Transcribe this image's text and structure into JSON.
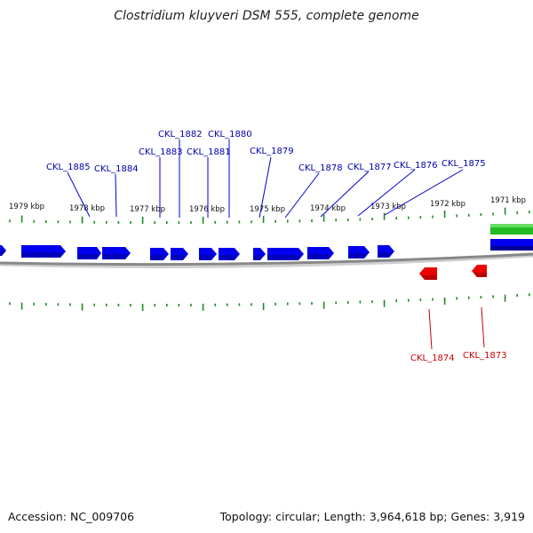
{
  "title": "Clostridium kluyveri DSM 555, complete genome",
  "footer": {
    "accession": "Accession: NC_009706",
    "topology": "Topology: circular; Length: 3,964,618 bp; Genes: 3,919"
  },
  "colors": {
    "forward_gene": "#0000ee",
    "reverse_gene": "#ee0000",
    "other_feature": "#22bb22",
    "tick": "#228822",
    "backbone": "#888888",
    "forward_label": "#0000aa",
    "reverse_label": "#cc0000"
  },
  "scale": {
    "unit": "kbp",
    "labels": [
      "1979 kbp",
      "1978 kbp",
      "1977 kbp",
      "1976 kbp",
      "1975 kbp",
      "1974 kbp",
      "1973 kbp",
      "1972 kbp",
      "1971 kbp"
    ]
  },
  "forward_genes": [
    {
      "label": "CKL_1885"
    },
    {
      "label": "CKL_1884"
    },
    {
      "label": "CKL_1883"
    },
    {
      "label": "CKL_1882"
    },
    {
      "label": "CKL_1881"
    },
    {
      "label": "CKL_1880"
    },
    {
      "label": "CKL_1879"
    },
    {
      "label": "CKL_1878"
    },
    {
      "label": "CKL_1877"
    },
    {
      "label": "CKL_1876"
    },
    {
      "label": "CKL_1875"
    }
  ],
  "reverse_genes": [
    {
      "label": "CKL_1874"
    },
    {
      "label": "CKL_1873"
    }
  ]
}
